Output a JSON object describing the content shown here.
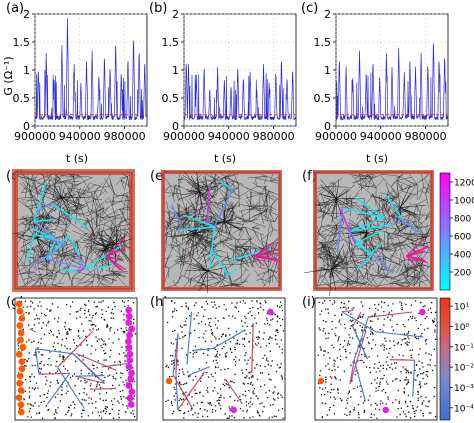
{
  "figure": {
    "panel_labels": [
      "(a)",
      "(b)",
      "(c)",
      "(d)",
      "(e)",
      "(f)",
      "(g)",
      "(h)",
      "(i)"
    ]
  },
  "chart_data": [
    {
      "type": "line",
      "panel": "(a)",
      "ylabel": "G (Ω⁻¹)",
      "xlabel": "t (s)",
      "xlim": [
        900000,
        1000000
      ],
      "ylim": [
        0,
        2
      ],
      "xticks": [
        "900000",
        "940000",
        "980000"
      ],
      "yticks": [
        "0",
        "0.5",
        "1",
        "1.5",
        "2"
      ],
      "grid": true,
      "series": [
        {
          "color": "#2b2bd6",
          "style": "spiky conductance trace",
          "baseline": 0.15,
          "peaks": [
            [
              903000,
              1.05
            ],
            [
              910000,
              1.3
            ],
            [
              917000,
              0.9
            ],
            [
              924000,
              1.5
            ],
            [
              929000,
              2.0
            ],
            [
              935000,
              1.1
            ],
            [
              941000,
              0.8
            ],
            [
              946000,
              1.2
            ],
            [
              951000,
              1.4
            ],
            [
              957000,
              0.95
            ],
            [
              962000,
              1.3
            ],
            [
              967000,
              1.1
            ],
            [
              972000,
              1.55
            ],
            [
              977000,
              1.0
            ],
            [
              983000,
              1.25
            ],
            [
              988000,
              1.65
            ],
            [
              993000,
              1.4
            ],
            [
              998000,
              1.2
            ]
          ]
        },
        {
          "color": "#e0302b",
          "style": "dashed threshold",
          "value": 0.2
        }
      ]
    },
    {
      "type": "line",
      "panel": "(b)",
      "xlabel": "t (s)",
      "xlim": [
        900000,
        1000000
      ],
      "ylim": [
        0,
        2
      ],
      "xticks": [
        "900000",
        "940000",
        "980000"
      ],
      "yticks": [
        "0",
        "0.5",
        "1",
        "1.5",
        "2"
      ],
      "grid": true,
      "series": [
        {
          "color": "#2b2bd6",
          "style": "spiky conductance trace",
          "baseline": 0.15,
          "peaks": [
            [
              902000,
              1.2
            ],
            [
              904000,
              1.15
            ],
            [
              911000,
              0.95
            ],
            [
              918000,
              1.1
            ],
            [
              923000,
              0.7
            ],
            [
              930000,
              1.05
            ],
            [
              936000,
              0.85
            ],
            [
              942000,
              0.75
            ],
            [
              948000,
              1.1
            ],
            [
              953000,
              0.9
            ],
            [
              959000,
              1.0
            ],
            [
              965000,
              0.65
            ],
            [
              971000,
              1.15
            ],
            [
              976000,
              0.8
            ],
            [
              982000,
              1.0
            ],
            [
              987000,
              1.25
            ],
            [
              992000,
              0.9
            ],
            [
              997000,
              1.05
            ]
          ]
        },
        {
          "color": "#e0302b",
          "style": "dashed threshold",
          "value": 0.2
        }
      ]
    },
    {
      "type": "line",
      "panel": "(c)",
      "xlabel": "t (s)",
      "xlim": [
        900000,
        1000000
      ],
      "ylim": [
        0,
        2
      ],
      "xticks": [
        "900000",
        "940000",
        "980000"
      ],
      "yticks": [
        "0",
        "0.5",
        "1",
        "1.5",
        "2"
      ],
      "grid": true,
      "series": [
        {
          "color": "#2b2bd6",
          "style": "spiky conductance trace",
          "baseline": 0.15,
          "peaks": [
            [
              903000,
              1.25
            ],
            [
              909000,
              1.1
            ],
            [
              915000,
              0.85
            ],
            [
              921000,
              1.4
            ],
            [
              927000,
              1.0
            ],
            [
              933000,
              1.2
            ],
            [
              939000,
              0.9
            ],
            [
              945000,
              1.3
            ],
            [
              950000,
              1.05
            ],
            [
              956000,
              1.45
            ],
            [
              961000,
              1.0
            ],
            [
              966000,
              1.2
            ],
            [
              971000,
              1.1
            ],
            [
              976000,
              1.35
            ],
            [
              982000,
              1.15
            ],
            [
              987000,
              1.6
            ],
            [
              992000,
              1.25
            ],
            [
              997000,
              1.3
            ]
          ]
        },
        {
          "color": "#e0302b",
          "style": "dashed threshold",
          "value": 0.2
        }
      ]
    },
    {
      "type": "heatmap",
      "panel": "(d)-(f)",
      "description_colormap": "cool",
      "colorbar_ticks": [
        "200",
        "400",
        "600",
        "800",
        "1000",
        "1200"
      ],
      "colorbar_range": [
        0,
        1300
      ],
      "colors": {
        "low": "#00ffff",
        "high": "#ff00ff",
        "mesh": "#222222",
        "boundary": "#d23c2c"
      }
    },
    {
      "type": "scatter",
      "panel": "(g)-(i)",
      "scale": "log",
      "colorbar_ticks": [
        "10¹",
        "10⁰",
        "10⁻¹",
        "10⁻²",
        "10⁻³",
        "10⁻⁴"
      ],
      "colorbar_range_exponent": [
        -4.6,
        1.4
      ],
      "colors": {
        "high": "#e8381a",
        "mid": "#b05080",
        "low": "#3f79c9",
        "endpoints_right": "#e020e0",
        "endpoints_left": "#ff5a00"
      }
    }
  ]
}
